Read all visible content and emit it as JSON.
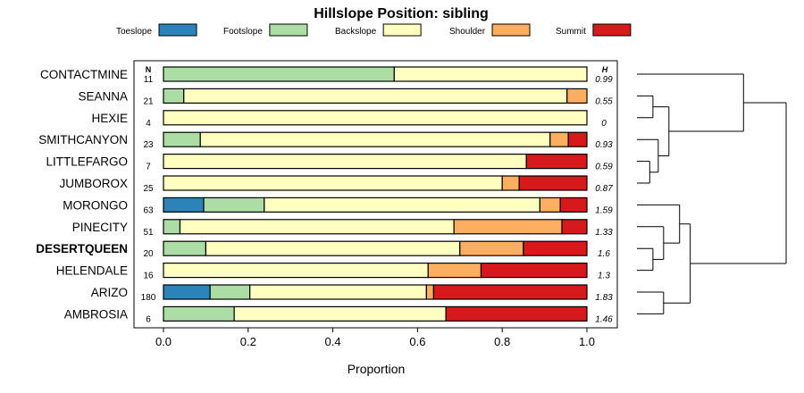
{
  "chart_data": {
    "type": "bar",
    "orientation": "horizontal",
    "stacked": true,
    "title": "Hillslope Position: sibling",
    "xlabel": "Proportion",
    "ylabel": "",
    "xlim": [
      0,
      1
    ],
    "x_ticks": [
      "0.0",
      "0.2",
      "0.4",
      "0.6",
      "0.8",
      "1.0"
    ],
    "legend_position": "top",
    "n_header": "N",
    "h_header": "H",
    "highlight_label": "DESERTQUEEN",
    "categories": [
      "CONTACTMINE",
      "SEANNA",
      "HEXIE",
      "SMITHCANYON",
      "LITTLEFARGO",
      "JUMBOROX",
      "MORONGO",
      "PINECITY",
      "DESERTQUEEN",
      "HELENDALE",
      "ARIZO",
      "AMBROSIA"
    ],
    "n_values": [
      "11",
      "21",
      "4",
      "23",
      "7",
      "25",
      "63",
      "51",
      "20",
      "16",
      "180",
      "6"
    ],
    "h_values": [
      "0.99",
      "0.55",
      "0",
      "0.93",
      "0.59",
      "0.87",
      "1.59",
      "1.33",
      "1.6",
      "1.3",
      "1.83",
      "1.46"
    ],
    "series": [
      {
        "name": "Toeslope",
        "color": "#2b83ba",
        "values": [
          0,
          0,
          0,
          0,
          0,
          0,
          0.095,
          0,
          0,
          0,
          0.11,
          0
        ]
      },
      {
        "name": "Footslope",
        "color": "#abdda4",
        "values": [
          0.545,
          0.048,
          0,
          0.087,
          0,
          0,
          0.143,
          0.039,
          0.1,
          0,
          0.094,
          0.167
        ]
      },
      {
        "name": "Backslope",
        "color": "#ffffbf",
        "values": [
          0.455,
          0.905,
          1.0,
          0.826,
          0.857,
          0.8,
          0.651,
          0.647,
          0.6,
          0.625,
          0.417,
          0.5
        ]
      },
      {
        "name": "Shoulder",
        "color": "#fdae61",
        "values": [
          0,
          0.047,
          0,
          0.043,
          0,
          0.04,
          0.048,
          0.255,
          0.15,
          0.125,
          0.017,
          0
        ]
      },
      {
        "name": "Summit",
        "color": "#d7191c",
        "values": [
          0,
          0,
          0,
          0.044,
          0.143,
          0.16,
          0.063,
          0.059,
          0.15,
          0.25,
          0.362,
          0.333
        ]
      }
    ],
    "dendrogram": {
      "leaf_order": [
        "CONTACTMINE",
        "SEANNA",
        "HEXIE",
        "SMITHCANYON",
        "LITTLEFARGO",
        "JUMBOROX",
        "MORONGO",
        "PINECITY",
        "DESERTQUEEN",
        "HELENDALE",
        "ARIZO",
        "AMBROSIA"
      ],
      "merges": [
        {
          "id": "A",
          "left": "SEANNA",
          "right": "HEXIE",
          "height": 0.15
        },
        {
          "id": "B",
          "left": "LITTLEFARGO",
          "right": "JUMBOROX",
          "height": 0.12
        },
        {
          "id": "C",
          "left": "SMITHCANYON",
          "right": "B",
          "height": 0.2
        },
        {
          "id": "D",
          "left": "A",
          "right": "C",
          "height": 0.3
        },
        {
          "id": "E",
          "left": "CONTACTMINE",
          "right": "D",
          "height": 1.0
        },
        {
          "id": "F",
          "left": "DESERTQUEEN",
          "right": "HELENDALE",
          "height": 0.15
        },
        {
          "id": "G",
          "left": "PINECITY",
          "right": "F",
          "height": 0.25
        },
        {
          "id": "H",
          "left": "MORONGO",
          "right": "G",
          "height": 0.4
        },
        {
          "id": "I",
          "left": "ARIZO",
          "right": "AMBROSIA",
          "height": 0.25
        },
        {
          "id": "J",
          "left": "H",
          "right": "I",
          "height": 0.5
        },
        {
          "id": "K",
          "left": "E",
          "right": "J",
          "height": 1.4
        }
      ]
    }
  }
}
